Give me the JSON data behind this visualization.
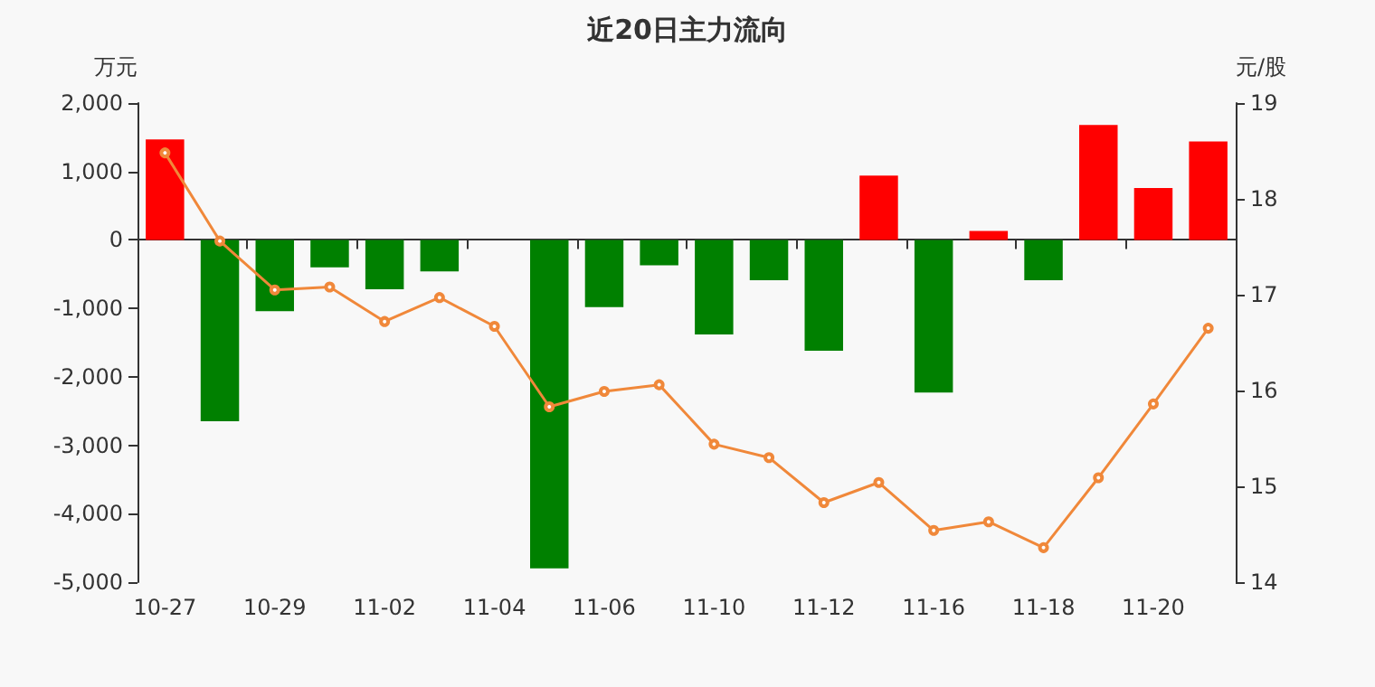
{
  "chart_data": {
    "type": "bar",
    "title": "近20日主力流向",
    "ylabel": "万元",
    "y2label": "元/股",
    "categories": [
      "10-27",
      null,
      "10-29",
      null,
      "11-02",
      null,
      "11-04",
      null,
      "11-06",
      null,
      "11-10",
      null,
      "11-12",
      null,
      "11-16",
      null,
      "11-18",
      null,
      "11-20",
      null
    ],
    "series": [
      {
        "colors": [
          "#ff0000",
          "#008000",
          "#008000",
          "#008000",
          "#008000",
          "#008000",
          "#008000",
          "#008000",
          "#008000",
          "#008000",
          "#008000",
          "#008000",
          "#008000",
          "#ff0000",
          "#008000",
          "#ff0000",
          "#008000",
          "#ff0000",
          "#ff0000",
          "#ff0000"
        ],
        "values": [
          1470,
          -2650,
          -1040,
          -400,
          -720,
          -460,
          0,
          -4800,
          -980,
          -370,
          -1380,
          -590,
          -1620,
          940,
          -2230,
          130,
          -590,
          1680,
          760,
          1440
        ]
      },
      {
        "type": "line",
        "axis": "y2",
        "color": "#f0883a",
        "marker": "circle",
        "values": [
          18.48,
          17.56,
          17.05,
          17.08,
          16.72,
          16.97,
          16.67,
          15.83,
          15.99,
          16.06,
          15.44,
          15.3,
          14.83,
          15.04,
          14.54,
          14.63,
          14.36,
          15.09,
          15.86,
          16.65
        ]
      }
    ],
    "ylim": [
      -5000,
      2000
    ],
    "yticks": [
      {
        "value": -5000,
        "label": "-5,000"
      },
      {
        "value": -4000,
        "label": "-4,000"
      },
      {
        "value": -3000,
        "label": "-3,000"
      },
      {
        "value": -2000,
        "label": "-2,000"
      },
      {
        "value": -1000,
        "label": "-1,000"
      },
      0,
      {
        "value": 1000,
        "label": "1,000"
      },
      {
        "value": 2000,
        "label": "2,000"
      }
    ],
    "y2lim": [
      14,
      19
    ],
    "y2ticks": [
      14,
      15,
      16,
      17,
      18,
      19
    ]
  }
}
